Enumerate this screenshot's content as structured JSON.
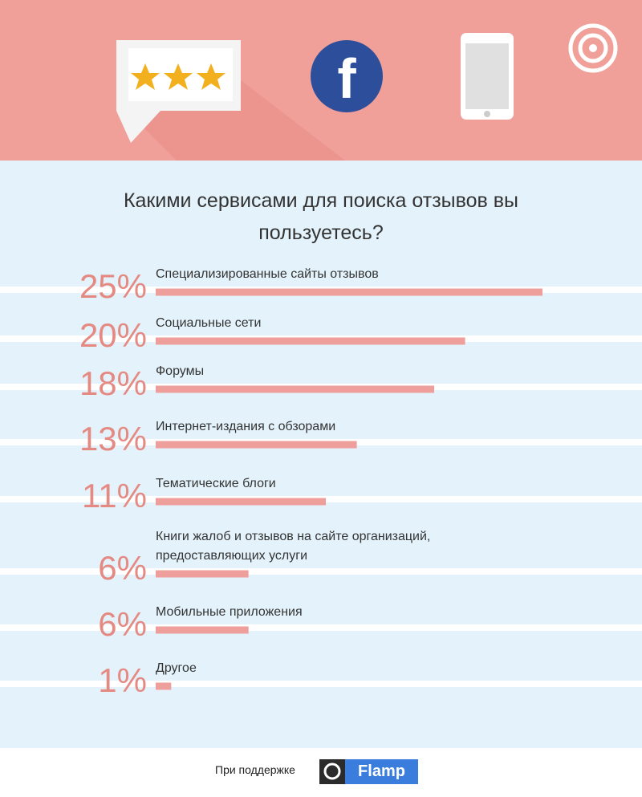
{
  "chart_data": {
    "type": "bar",
    "orientation": "horizontal",
    "title": "Какими сервисами для поиска отзывов вы пользуетесь?",
    "categories": [
      "Специализированные сайты отзывов",
      "Социальные сети",
      "Форумы",
      "Интернет-издания с обзорами",
      "Тематические блоги",
      "Книги жалоб и отзывов на сайте организаций, предоставляющих услуги",
      "Мобильные приложения",
      "Другое"
    ],
    "values": [
      25,
      20,
      18,
      13,
      11,
      6,
      6,
      1
    ],
    "value_labels": [
      "25%",
      "20%",
      "18%",
      "13%",
      "11%",
      "6%",
      "6%",
      "1%"
    ],
    "color": "#ee9f9b"
  },
  "footer": {
    "text": "При поддержке",
    "logo": "Flamp"
  }
}
